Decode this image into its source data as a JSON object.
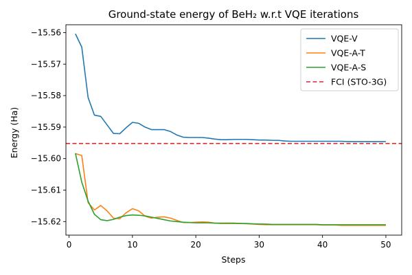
{
  "chart_data": {
    "type": "line",
    "title": "Ground-state energy of BeH₂ w.r.t VQE iterations",
    "xlabel": "Steps",
    "ylabel": "Energy (Ha)",
    "xlim": [
      -0.5,
      52.5
    ],
    "ylim": [
      -15.6243,
      -15.5575
    ],
    "xticks": [
      0,
      10,
      20,
      30,
      40,
      50
    ],
    "yticks": [
      -15.56,
      -15.57,
      -15.58,
      -15.59,
      -15.6,
      -15.61,
      -15.62
    ],
    "ytick_labels": [
      "−15.56",
      "−15.57",
      "−15.58",
      "−15.59",
      "−15.60",
      "−15.61",
      "−15.62"
    ],
    "legend_position": "top-right",
    "x": [
      1,
      2,
      3,
      4,
      5,
      6,
      7,
      8,
      9,
      10,
      11,
      12,
      13,
      14,
      15,
      16,
      17,
      18,
      19,
      20,
      21,
      22,
      23,
      24,
      25,
      26,
      27,
      28,
      29,
      30,
      31,
      32,
      33,
      34,
      35,
      36,
      37,
      38,
      39,
      40,
      41,
      42,
      43,
      44,
      45,
      46,
      47,
      48,
      49,
      50
    ],
    "series": [
      {
        "name": "VQE-V",
        "color": "#1f77b4",
        "style": "solid",
        "values": [
          -15.5604,
          -15.5646,
          -15.5806,
          -15.5862,
          -15.5866,
          -15.5893,
          -15.592,
          -15.5921,
          -15.5902,
          -15.5885,
          -15.5888,
          -15.59,
          -15.5908,
          -15.5908,
          -15.5908,
          -15.5914,
          -15.5925,
          -15.5932,
          -15.5933,
          -15.5933,
          -15.5933,
          -15.5935,
          -15.5938,
          -15.594,
          -15.594,
          -15.5939,
          -15.5939,
          -15.5939,
          -15.594,
          -15.5941,
          -15.5941,
          -15.5942,
          -15.5942,
          -15.5944,
          -15.5945,
          -15.5945,
          -15.5945,
          -15.5945,
          -15.5945,
          -15.5945,
          -15.5945,
          -15.5945,
          -15.5945,
          -15.5946,
          -15.5946,
          -15.5946,
          -15.5946,
          -15.5946,
          -15.5946,
          -15.5946
        ]
      },
      {
        "name": "VQE-A-T",
        "color": "#ff7f0e",
        "style": "solid",
        "values": [
          -15.5984,
          -15.599,
          -15.614,
          -15.6163,
          -15.6149,
          -15.6166,
          -15.6189,
          -15.6191,
          -15.6172,
          -15.6159,
          -15.6166,
          -15.6183,
          -15.6189,
          -15.6186,
          -15.6185,
          -15.6189,
          -15.6196,
          -15.6203,
          -15.6203,
          -15.6202,
          -15.6201,
          -15.6202,
          -15.6205,
          -15.6206,
          -15.6206,
          -15.6206,
          -15.6206,
          -15.6207,
          -15.6208,
          -15.6209,
          -15.621,
          -15.621,
          -15.621,
          -15.621,
          -15.621,
          -15.621,
          -15.621,
          -15.621,
          -15.621,
          -15.6211,
          -15.6211,
          -15.6211,
          -15.6212,
          -15.6212,
          -15.6212,
          -15.6212,
          -15.6212,
          -15.6212,
          -15.6212,
          -15.6212
        ]
      },
      {
        "name": "VQE-A-S",
        "color": "#2ca02c",
        "style": "solid",
        "values": [
          -15.5983,
          -15.6075,
          -15.6135,
          -15.6177,
          -15.6194,
          -15.6197,
          -15.6193,
          -15.6186,
          -15.6181,
          -15.6179,
          -15.618,
          -15.6182,
          -15.6186,
          -15.619,
          -15.6194,
          -15.6198,
          -15.62,
          -15.6202,
          -15.6203,
          -15.6204,
          -15.6204,
          -15.6204,
          -15.6205,
          -15.6205,
          -15.6205,
          -15.6205,
          -15.6206,
          -15.6206,
          -15.6207,
          -15.6208,
          -15.6208,
          -15.6209,
          -15.6209,
          -15.6209,
          -15.6209,
          -15.6209,
          -15.6209,
          -15.6209,
          -15.6209,
          -15.621,
          -15.621,
          -15.621,
          -15.621,
          -15.621,
          -15.621,
          -15.621,
          -15.621,
          -15.621,
          -15.621,
          -15.621
        ]
      },
      {
        "name": "FCI (STO-3G)",
        "color": "#d62728",
        "style": "dashed",
        "constant": -15.5952
      }
    ]
  }
}
